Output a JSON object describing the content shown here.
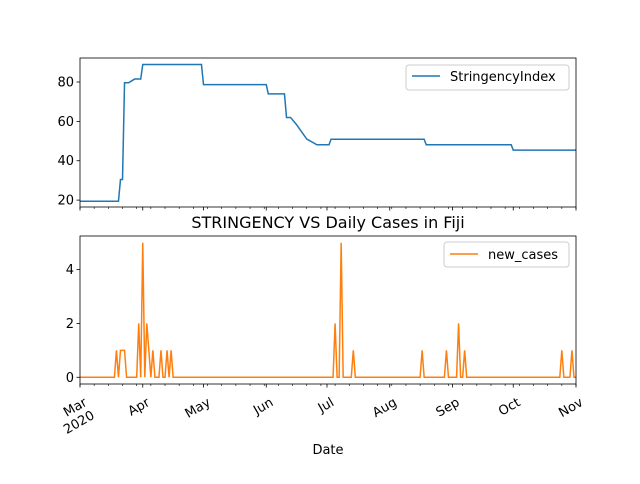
{
  "chart_data": [
    {
      "type": "line",
      "title": "",
      "xlabel": "",
      "ylabel": "",
      "x_range": [
        "2020-03-01",
        "2020-11-01"
      ],
      "ylim": [
        16.5,
        92.2
      ],
      "yticks": [
        20,
        40,
        60,
        80
      ],
      "legend": "upper right",
      "series": [
        {
          "name": "StringencyIndex",
          "color": "#1f77b4",
          "x": [
            "2020-03-01",
            "2020-03-20",
            "2020-03-21",
            "2020-03-22",
            "2020-03-23",
            "2020-03-25",
            "2020-03-28",
            "2020-03-31",
            "2020-04-01",
            "2020-04-02",
            "2020-04-30",
            "2020-05-01",
            "2020-05-30",
            "2020-06-01",
            "2020-06-02",
            "2020-06-10",
            "2020-06-11",
            "2020-06-13",
            "2020-06-16",
            "2020-06-21",
            "2020-06-26",
            "2020-07-02",
            "2020-07-03",
            "2020-08-01",
            "2020-08-02",
            "2020-08-18",
            "2020-08-19",
            "2020-09-30",
            "2020-10-01",
            "2020-11-01"
          ],
          "values": [
            19.4,
            19.4,
            30.5,
            30.5,
            79.6,
            79.6,
            81.5,
            81.5,
            88.9,
            88.9,
            88.9,
            78.7,
            78.7,
            78.7,
            74.0,
            74.0,
            62.0,
            62.0,
            58.3,
            51.0,
            48.1,
            48.1,
            50.9,
            50.9,
            50.9,
            50.9,
            48.1,
            48.1,
            45.4,
            45.4
          ]
        }
      ]
    },
    {
      "type": "line",
      "title": "STRINGENCY VS Daily Cases in Fiji",
      "xlabel": "Date",
      "ylabel": "",
      "x_range": [
        "2020-03-01",
        "2020-11-01"
      ],
      "ylim": [
        -0.25,
        5.25
      ],
      "yticks": [
        0,
        2,
        4
      ],
      "xtick_labels": [
        "Mar\n2020",
        "Apr",
        "May",
        "Jun",
        "Jul",
        "Aug",
        "Sep",
        "Oct",
        "Nov"
      ],
      "legend": "upper right",
      "series": [
        {
          "name": "new_cases",
          "color": "#ff7f0e",
          "x": [
            "2020-03-01",
            "2020-03-18",
            "2020-03-19",
            "2020-03-20",
            "2020-03-21",
            "2020-03-22",
            "2020-03-23",
            "2020-03-24",
            "2020-03-25",
            "2020-03-29",
            "2020-03-30",
            "2020-03-31",
            "2020-04-01",
            "2020-04-02",
            "2020-04-03",
            "2020-04-04",
            "2020-04-05",
            "2020-04-06",
            "2020-04-07",
            "2020-04-08",
            "2020-04-09",
            "2020-04-10",
            "2020-04-11",
            "2020-04-12",
            "2020-04-13",
            "2020-04-14",
            "2020-04-15",
            "2020-04-16",
            "2020-07-04",
            "2020-07-05",
            "2020-07-06",
            "2020-07-07",
            "2020-07-08",
            "2020-07-09",
            "2020-07-13",
            "2020-07-14",
            "2020-07-15",
            "2020-08-16",
            "2020-08-17",
            "2020-08-18",
            "2020-08-28",
            "2020-08-29",
            "2020-08-30",
            "2020-09-03",
            "2020-09-04",
            "2020-09-05",
            "2020-09-06",
            "2020-09-07",
            "2020-09-08",
            "2020-10-24",
            "2020-10-25",
            "2020-10-26",
            "2020-10-29",
            "2020-10-30",
            "2020-10-31",
            "2020-11-01"
          ],
          "values": [
            0,
            0,
            1,
            0,
            1,
            1,
            1,
            0,
            0,
            0,
            2,
            0,
            5,
            0,
            2,
            1,
            0,
            1,
            0,
            0,
            0,
            1,
            0,
            0,
            1,
            0,
            1,
            0,
            0,
            2,
            0,
            0,
            5,
            0,
            0,
            1,
            0,
            0,
            1,
            0,
            0,
            1,
            0,
            0,
            2,
            0,
            0,
            1,
            0,
            0,
            1,
            0,
            0,
            1,
            0,
            0
          ]
        }
      ]
    }
  ]
}
